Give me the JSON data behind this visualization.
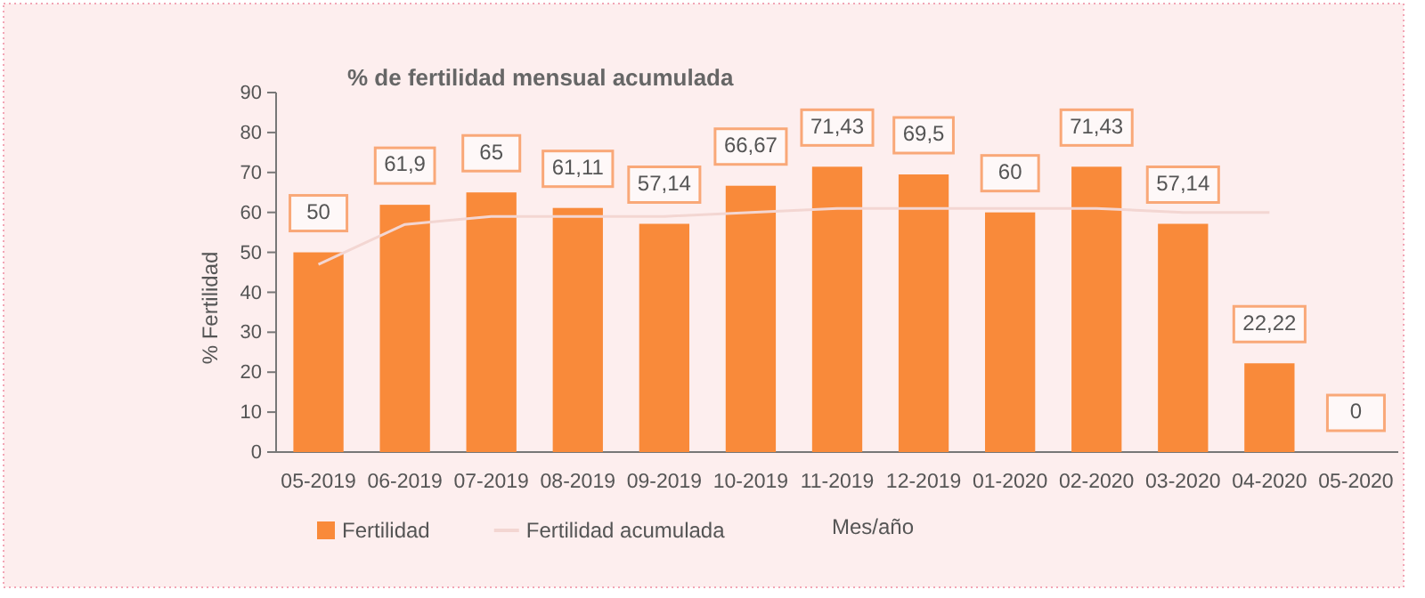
{
  "chart_data": {
    "type": "bar",
    "title": "% de fertilidad mensual acumulada",
    "xlabel": "Mes/año",
    "ylabel": "% Fertilidad",
    "categories": [
      "05-2019",
      "06-2019",
      "07-2019",
      "08-2019",
      "09-2019",
      "10-2019",
      "11-2019",
      "12-2019",
      "01-2020",
      "02-2020",
      "03-2020",
      "04-2020",
      "05-2020"
    ],
    "series": [
      {
        "name": "Fertilidad",
        "color": "#f98a3a",
        "values": [
          50,
          61.9,
          65,
          61.11,
          57.14,
          66.67,
          71.43,
          69.5,
          60,
          71.43,
          57.14,
          22.22,
          0
        ],
        "value_labels": [
          "50",
          "61,9",
          "65",
          "61,11",
          "57,14",
          "66,67",
          "71,43",
          "69,5",
          "60",
          "71,43",
          "57,14",
          "22,22",
          "0"
        ]
      },
      {
        "name": "Fertilidad acumulada",
        "type": "line",
        "color": "#f3d6d2",
        "values": [
          47,
          57,
          59,
          59,
          59,
          60,
          61,
          61,
          61,
          61,
          60,
          60,
          null
        ]
      }
    ],
    "ylim": [
      0,
      90
    ],
    "yticks": [
      0,
      10,
      20,
      30,
      40,
      50,
      60,
      70,
      80,
      90
    ],
    "grid": false,
    "legend": "bottom left"
  }
}
